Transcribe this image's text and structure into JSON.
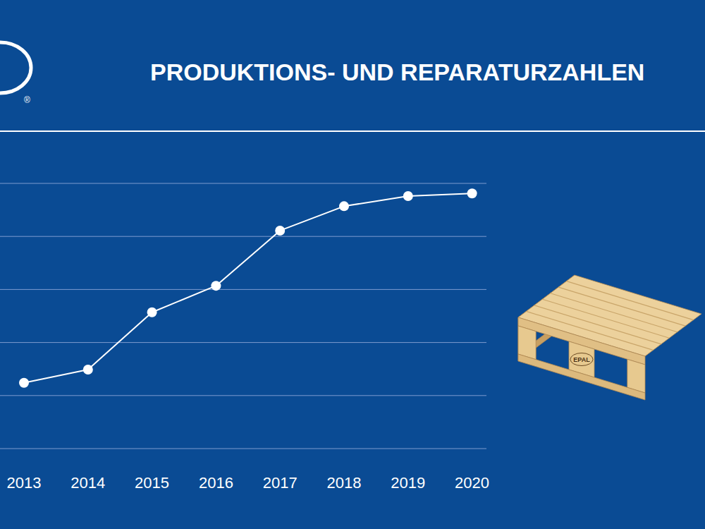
{
  "chart_data": {
    "type": "line",
    "title": "PRODUKTIONS- UND REPARATURZAHLEN",
    "categories": [
      "2013",
      "2014",
      "2015",
      "2016",
      "2017",
      "2018",
      "2019",
      "2020"
    ],
    "values": [
      1.24,
      1.49,
      2.57,
      3.07,
      4.11,
      4.57,
      4.76,
      4.81
    ],
    "color": "#ffffff",
    "marker": "circle",
    "ylim": [
      0,
      5
    ],
    "yticks": [
      0,
      1,
      2,
      3,
      4,
      5
    ],
    "grid": true,
    "tick_labels": "x"
  },
  "decor": {
    "pallet_label": "EPAL",
    "logo_mark": "®"
  }
}
